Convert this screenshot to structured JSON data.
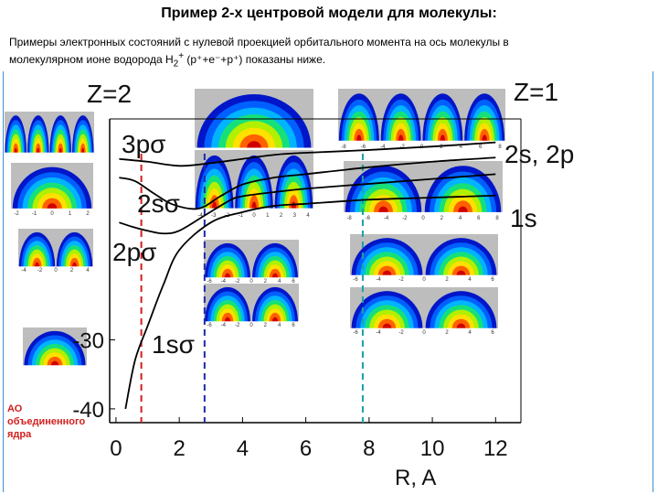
{
  "title": "Пример 2-х центровой модели для молекулы:",
  "subtitle_line1": "Примеры электронных состояний с нулевой проекцией орбитального момента на ось молекулы в",
  "subtitle_line2_prefix": "молекулярном ионе водорода H",
  "subtitle_sub": "2",
  "subtitle_sup": "+",
  "subtitle_line2_suffix": " (p⁺+e⁻+p⁺) показаны ниже.",
  "ao_label": [
    "АО",
    "объединенного",
    "ядра"
  ],
  "labels": {
    "z2": "Z=2",
    "z1": "Z=1",
    "s3p": "3pσ",
    "s2s": "2sσ",
    "s2p": "2pσ",
    "s1s": "1sσ",
    "a2s2p": "2s, 2p",
    "a1s": "1s"
  },
  "chart_data": {
    "type": "line",
    "xlabel": "R, A",
    "x_ticks": [
      0,
      2,
      4,
      6,
      8,
      10,
      12
    ],
    "y_ticks": [
      -40,
      -30
    ],
    "xlim": [
      -0.2,
      12.8
    ],
    "ylim": [
      -42,
      2
    ],
    "series": [
      {
        "name": "1sσ",
        "x": [
          0.3,
          0.6,
          1,
          1.5,
          2,
          3,
          4,
          5,
          6,
          8,
          10,
          12
        ],
        "y": [
          -40,
          -33,
          -28,
          -22,
          -17,
          -13,
          -11.5,
          -10.6,
          -10.3,
          -9.7,
          -9.4,
          -9.1
        ]
      },
      {
        "name": "2pσ",
        "x": [
          0.1,
          0.5,
          1,
          1.5,
          2,
          2.8,
          3.6,
          4,
          5,
          6,
          8,
          10,
          12
        ],
        "y": [
          -13,
          -13.6,
          -14.2,
          -14.6,
          -14.2,
          -12,
          -9.8,
          -9.2,
          -8.6,
          -8.1,
          -7.4,
          -6.7,
          -6.0
        ]
      },
      {
        "name": "2sσ",
        "x": [
          0.1,
          0.6,
          1.2,
          1.8,
          2.6,
          3.3,
          4,
          5,
          6,
          8,
          10,
          12
        ],
        "y": [
          -6.5,
          -7,
          -8.8,
          -10.4,
          -11,
          -9.2,
          -7.5,
          -6.5,
          -6.0,
          -5.0,
          -4.2,
          -3.6
        ]
      },
      {
        "name": "3pσ",
        "x": [
          0.1,
          1,
          2,
          3,
          4,
          5,
          6,
          8,
          10,
          12
        ],
        "y": [
          -3.8,
          -4.2,
          -4.8,
          -4.4,
          -3.8,
          -3.2,
          -2.9,
          -2.5,
          -2.0,
          -1.4
        ]
      }
    ],
    "markers_R": [
      0.8,
      2.8,
      7.8
    ]
  },
  "insets": [
    {
      "name": "inset-ao-3p",
      "lobes": 4,
      "ticks": []
    },
    {
      "name": "inset-ao-2s",
      "lobes": 1,
      "ticks": [
        "-2",
        "-1",
        "0",
        "1",
        "2"
      ]
    },
    {
      "name": "inset-ao-2p",
      "lobes": 2,
      "ticks": [
        "-4",
        "-2",
        "0",
        "2",
        "4"
      ]
    },
    {
      "name": "inset-ao-1s",
      "lobes": 1,
      "ticks": []
    },
    {
      "name": "inset-3p-mid",
      "lobes": 1,
      "ticks": [
        "-4",
        "-3",
        "-2",
        "-1",
        "0",
        "1",
        "2",
        "3",
        "4"
      ]
    },
    {
      "name": "inset-2s-mid",
      "lobes": 3,
      "ticks": [
        "-4",
        "-3",
        "-2",
        "-1",
        "0",
        "1",
        "2",
        "3",
        "4"
      ]
    },
    {
      "name": "inset-2p-mid",
      "lobes": 2,
      "ticks": [
        "-6",
        "-4",
        "-2",
        "0",
        "2",
        "4",
        "6"
      ]
    },
    {
      "name": "inset-1s-mid",
      "lobes": 2,
      "ticks": [
        "-6",
        "-4",
        "-2",
        "0",
        "2",
        "4",
        "6"
      ]
    },
    {
      "name": "inset-2s2p-far",
      "lobes": 4,
      "ticks": [
        "-8",
        "-6",
        "-4",
        "-2",
        "0",
        "2",
        "4",
        "6",
        "8"
      ]
    },
    {
      "name": "inset-1s-far",
      "lobes": 2,
      "ticks": [
        "-8",
        "-6",
        "-4",
        "-2",
        "0",
        "2",
        "4",
        "6",
        "8"
      ]
    },
    {
      "name": "inset-far-2p",
      "lobes": 2,
      "ticks": [
        "-6",
        "-4",
        "-2",
        "0",
        "2",
        "4",
        "6"
      ]
    },
    {
      "name": "inset-far-1s",
      "lobes": 2,
      "ticks": [
        "-6",
        "-4",
        "-2",
        "0",
        "2",
        "4",
        "6"
      ]
    }
  ]
}
